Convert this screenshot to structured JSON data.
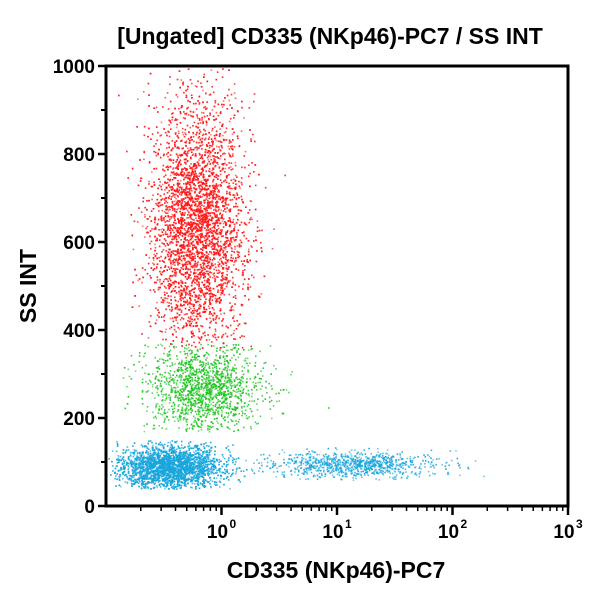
{
  "chart_data": {
    "type": "scatter",
    "title": "[Ungated] CD335 (NKp46)-PC7 / SS INT",
    "xlabel": "CD335 (NKp46)-PC7",
    "ylabel": "SS INT",
    "x_scale": "log",
    "xlim": [
      0.1,
      1000
    ],
    "ylim": [
      0,
      1000
    ],
    "x_ticks": [
      {
        "value": 1,
        "base": "10",
        "exp": "0"
      },
      {
        "value": 10,
        "base": "10",
        "exp": "1"
      },
      {
        "value": 100,
        "base": "10",
        "exp": "2"
      },
      {
        "value": 1000,
        "base": "10",
        "exp": "3"
      }
    ],
    "y_ticks": [
      {
        "value": 0,
        "label": "0"
      },
      {
        "value": 200,
        "label": "200"
      },
      {
        "value": 400,
        "label": "400"
      },
      {
        "value": 600,
        "label": "600"
      },
      {
        "value": 800,
        "label": "800"
      },
      {
        "value": 1000,
        "label": "1000"
      }
    ],
    "grid": false,
    "series": [
      {
        "color": "#ff1a1a",
        "count": 5500,
        "x_log_center": -0.22,
        "x_log_spread": 0.2,
        "y_center": 640,
        "y_spread": 140,
        "y_min": 360,
        "y_max": 1000
      },
      {
        "color": "#18c21a",
        "count": 1500,
        "x_log_center": -0.15,
        "x_log_spread": 0.25,
        "y_center": 270,
        "y_spread": 50,
        "y_min": 170,
        "y_max": 370
      },
      {
        "color": "#19a6dc",
        "count": 3500,
        "x_log_center": -0.45,
        "x_log_spread": 0.22,
        "y_center": 90,
        "y_spread": 25,
        "y_min": 40,
        "y_max": 150
      },
      {
        "color": "#19a6dc",
        "count": 900,
        "x_log_center": 1.15,
        "x_log_spread": 0.35,
        "y_center": 95,
        "y_spread": 15,
        "y_min": 60,
        "y_max": 135
      }
    ]
  }
}
